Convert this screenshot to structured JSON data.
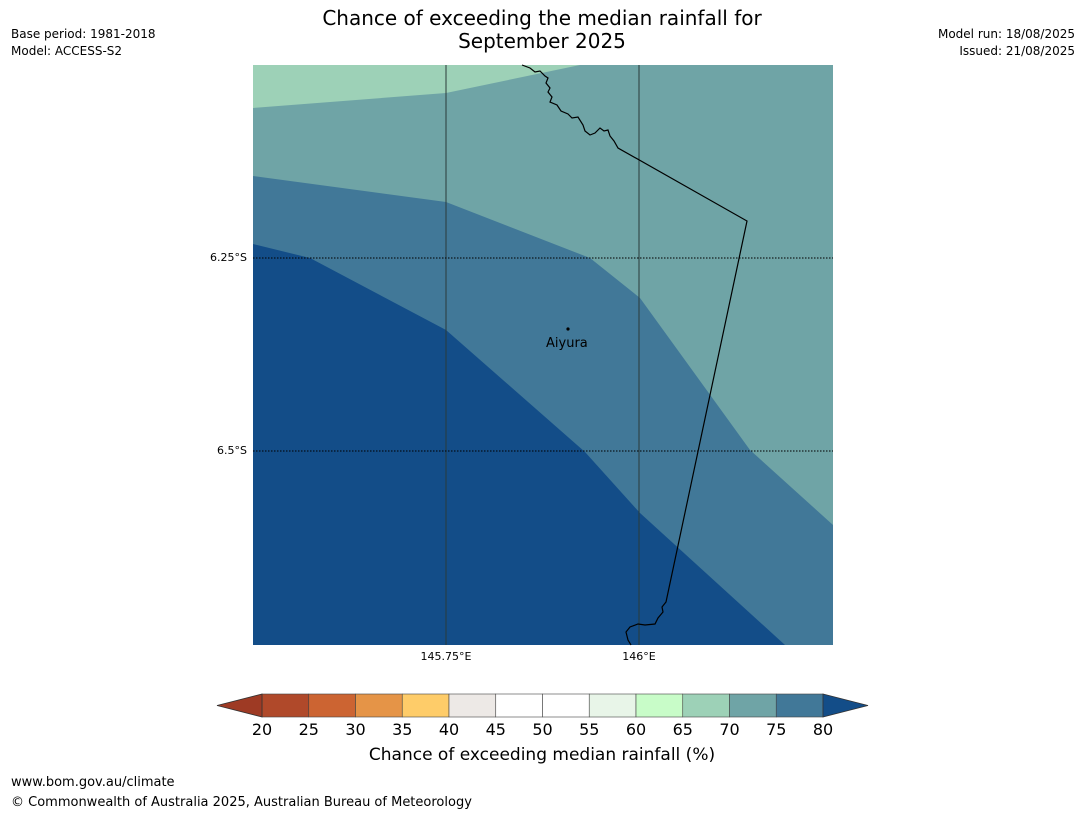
{
  "title_line1": "Chance of exceeding the median rainfall for",
  "title_line2": "September 2025",
  "meta_left": {
    "base_period": "Base period: 1981-2018",
    "model": "Model: ACCESS-S2"
  },
  "meta_right": {
    "model_run": "Model run: 18/08/2025",
    "issued": "Issued: 21/08/2025"
  },
  "map": {
    "latitude_labels": [
      "6.25°S",
      "6.5°S"
    ],
    "longitude_labels": [
      "145.75°E",
      "146°E"
    ],
    "town": "Aiyura"
  },
  "colorbar": {
    "title": "Chance of exceeding median rainfall (%)",
    "ticks": [
      "20",
      "25",
      "30",
      "35",
      "40",
      "45",
      "50",
      "55",
      "60",
      "65",
      "70",
      "75",
      "80"
    ],
    "colors": [
      "#b0492a",
      "#cc6432",
      "#e59447",
      "#fecc69",
      "#ede9e6",
      "#ffffff",
      "#ffffff",
      "#e8f5e8",
      "#c8fcc8",
      "#9dd1b7",
      "#6fa4a6",
      "#417898"
    ],
    "low_color": "#9e3a24",
    "high_color": "#134d88"
  },
  "footer": {
    "url": "www.bom.gov.au/climate",
    "copyright": "© Commonwealth of Australia 2025, Australian Bureau of Meteorology"
  }
}
